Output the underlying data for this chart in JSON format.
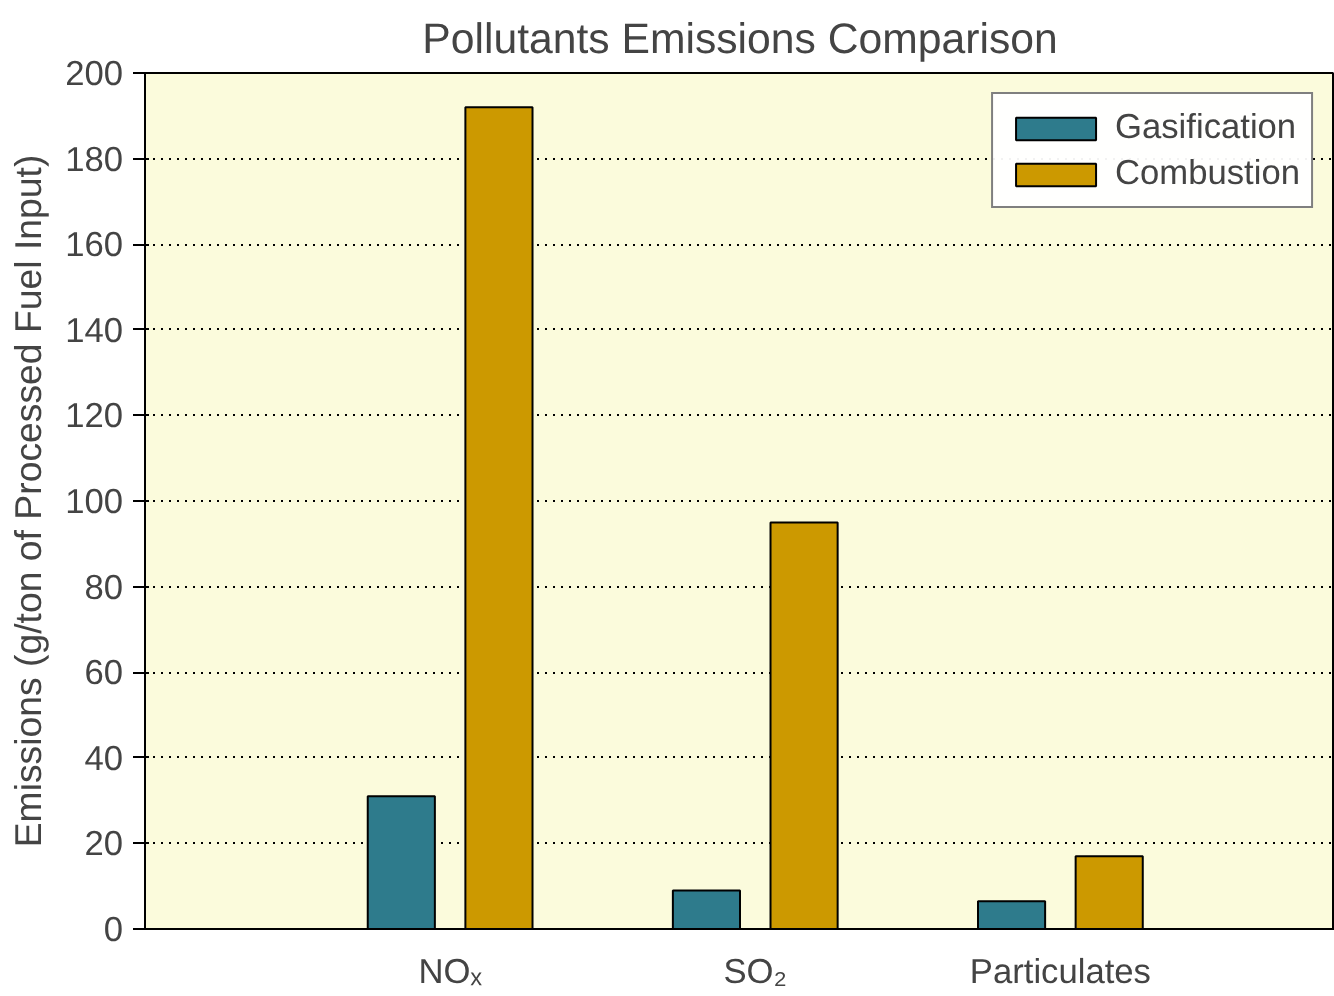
{
  "chart_data": {
    "type": "bar",
    "title": "Pollutants Emissions Comparison",
    "ylabel": "Emissions (g/ton of Processed Fuel Input)",
    "categories": [
      "NOₓ",
      "SO₂",
      "Particulates"
    ],
    "series": [
      {
        "name": "Gasification",
        "color": "#2e7b8c",
        "values": [
          31,
          9,
          6.5
        ]
      },
      {
        "name": "Combustion",
        "color": "#cc9900",
        "values": [
          192,
          95,
          17
        ]
      }
    ],
    "ylim": [
      0,
      200
    ],
    "yticks": [
      0,
      20,
      40,
      60,
      80,
      100,
      120,
      140,
      160,
      180,
      200
    ],
    "grid": "y",
    "legend": "top right"
  }
}
